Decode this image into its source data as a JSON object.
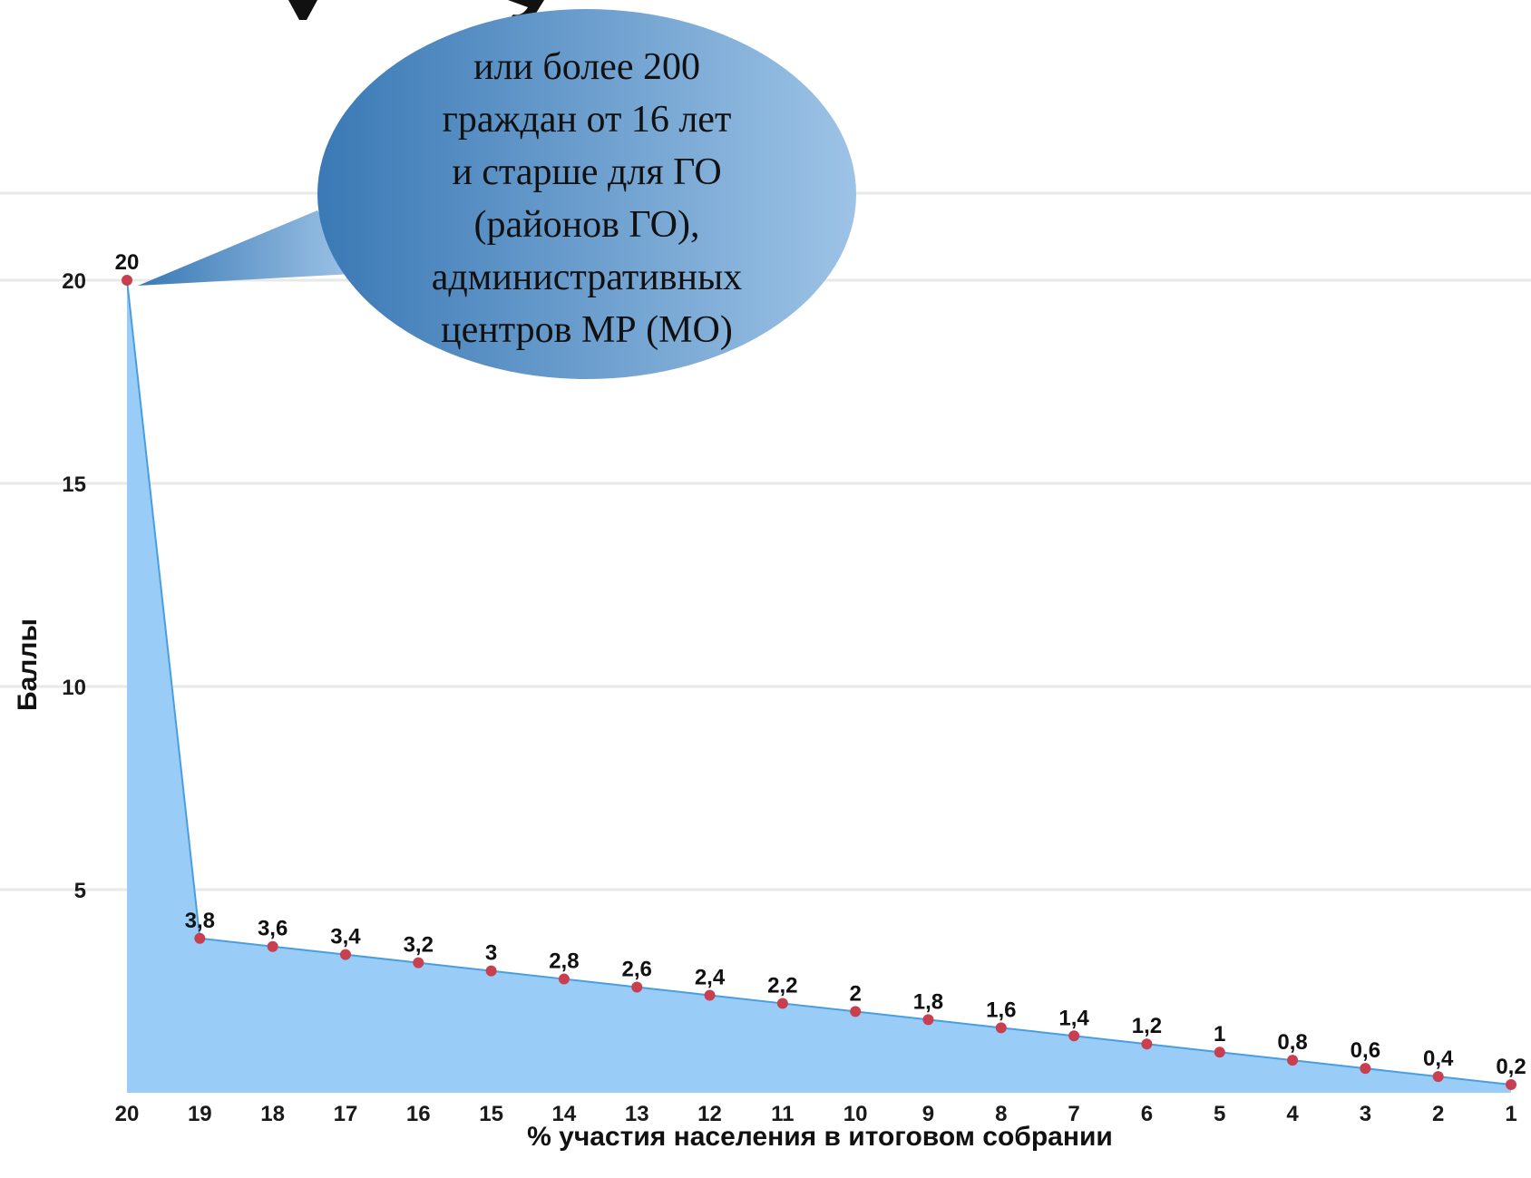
{
  "chart_data": {
    "type": "area",
    "title": "",
    "xlabel": "% участия населения в итоговом собрании",
    "ylabel": "Баллы",
    "categories": [
      "20",
      "19",
      "18",
      "17",
      "16",
      "15",
      "14",
      "13",
      "12",
      "11",
      "10",
      "9",
      "8",
      "7",
      "6",
      "5",
      "4",
      "3",
      "2",
      "1"
    ],
    "values": [
      20,
      3.8,
      3.6,
      3.4,
      3.2,
      3,
      2.8,
      2.6,
      2.4,
      2.2,
      2,
      1.8,
      1.6,
      1.4,
      1.2,
      1,
      0.8,
      0.6,
      0.4,
      0.2
    ],
    "data_labels": [
      "20",
      "3,8",
      "3,6",
      "3,4",
      "3,2",
      "3",
      "2,8",
      "2,6",
      "2,4",
      "2,2",
      "2",
      "1,8",
      "1,6",
      "1,4",
      "1,2",
      "1",
      "0,8",
      "0,6",
      "0,4",
      "0,2"
    ],
    "y_ticks": [
      5,
      10,
      15,
      20
    ],
    "ylim": [
      0,
      20
    ],
    "grid": true,
    "colors": {
      "area_fill": "#99ccf7",
      "line": "#4a9ee0",
      "marker": "#c8404f",
      "grid": "#e9e9e9"
    },
    "callout": {
      "lines": [
        "или более 200",
        "граждан от 16 лет",
        "и старше для ГО",
        "(районов ГО),",
        "административных",
        "центров МР (МО)"
      ],
      "gradient": [
        "#3a79b5",
        "#9dc3e6"
      ],
      "points_to_category": "20"
    }
  }
}
